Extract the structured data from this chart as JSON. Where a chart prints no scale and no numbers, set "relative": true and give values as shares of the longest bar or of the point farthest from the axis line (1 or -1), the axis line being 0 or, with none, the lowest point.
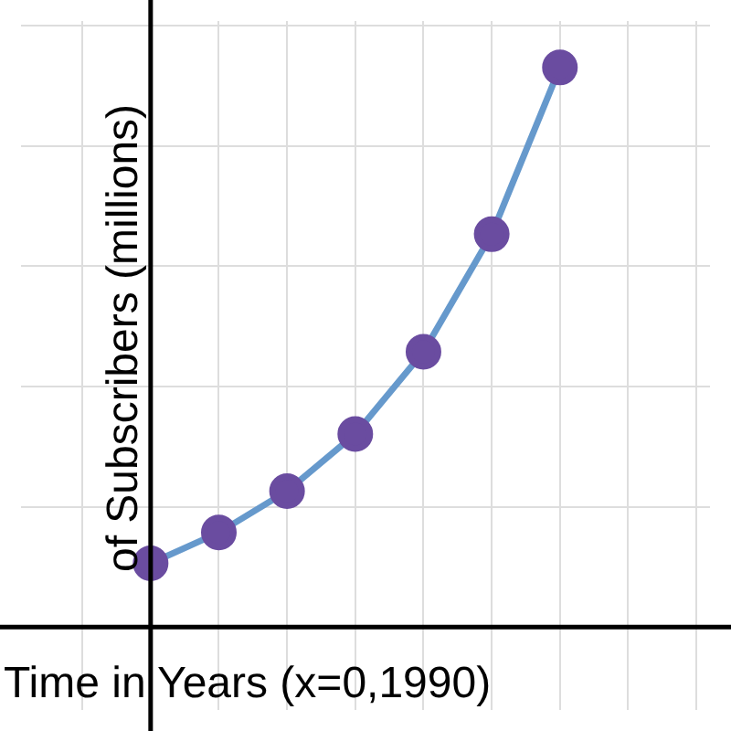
{
  "chart_data": {
    "type": "line",
    "xlabel": "Time in Years (x=0,1990)",
    "ylabel": "of Subscribers (millions)",
    "relative": true,
    "grid": true,
    "legend": false,
    "marker": "circle",
    "categories": [
      null,
      null,
      null,
      null,
      null,
      null,
      null
    ],
    "series": [
      {
        "color": "#6699cc",
        "colors": [
          "#6a4ca0",
          "#6a4ca0",
          "#6a4ca0",
          "#6a4ca0",
          "#6a4ca0",
          "#6a4ca0",
          "#6a4ca0"
        ],
        "values": [
          0.114,
          0.169,
          0.243,
          0.345,
          0.492,
          0.702,
          1.0
        ]
      }
    ]
  }
}
